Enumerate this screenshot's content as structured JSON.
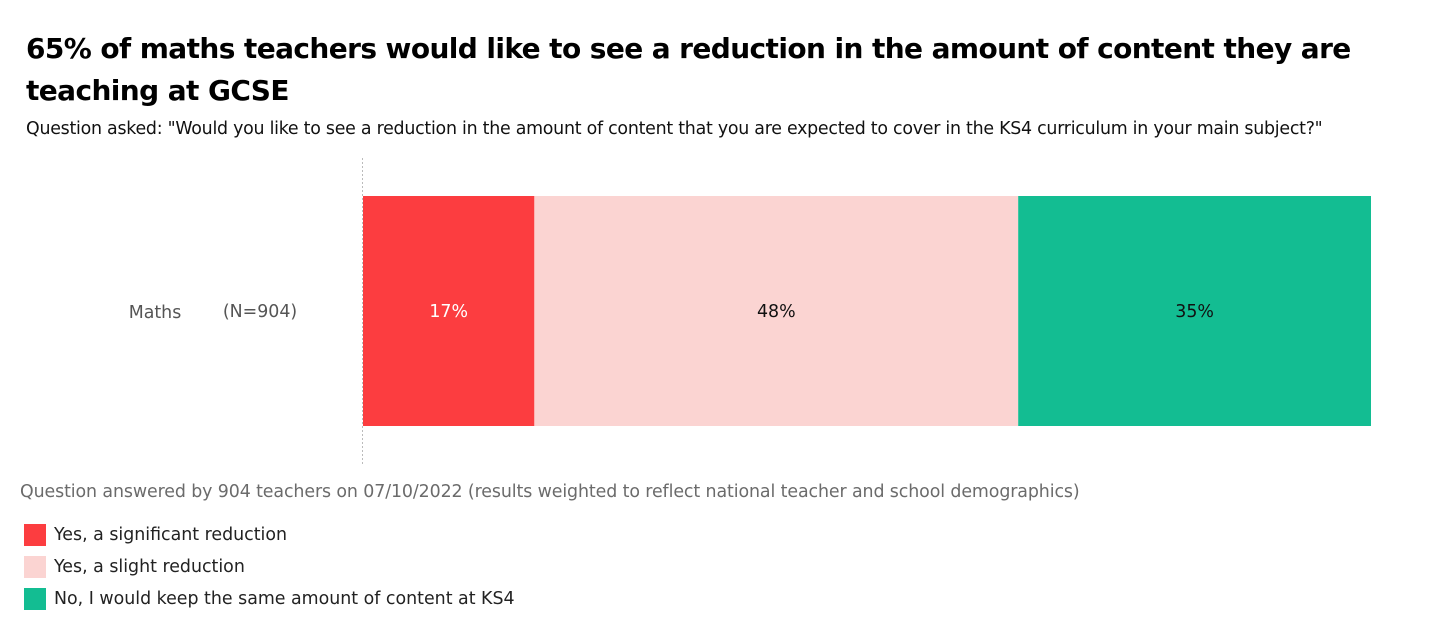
{
  "title": "65% of maths teachers would like to see a reduction in the amount of content they are teaching at GCSE",
  "subtitle": "Question asked: \"Would you like to see a reduction in the amount of content that you are expected to cover in the KS4 curriculum in your main subject?\"",
  "footnote": "Question answered by 904 teachers on 07/10/2022 (results weighted to reflect national teacher and school demographics)",
  "colors": {
    "significant": "#fc3d40",
    "slight": "#fbd4d2",
    "keep": "#13bd92",
    "axis": "#bbbbbb",
    "category_text": "#555555",
    "label_light": "#ffffff",
    "label_dark": "#111111"
  },
  "legend": [
    {
      "label": "Yes, a significant reduction",
      "color": "#fc3d40"
    },
    {
      "label": "Yes, a slight reduction",
      "color": "#fbd4d2"
    },
    {
      "label": "No, I would keep the same amount of content at KS4",
      "color": "#13bd92"
    }
  ],
  "chart_data": {
    "type": "bar",
    "orientation": "horizontal",
    "stacked": true,
    "normalized": true,
    "categories": [
      "Maths"
    ],
    "category_notes": [
      "(N=904)"
    ],
    "series": [
      {
        "name": "Yes, a significant reduction",
        "values": [
          17
        ],
        "labels": [
          "17%"
        ],
        "color": "#fc3d40"
      },
      {
        "name": "Yes, a slight reduction",
        "values": [
          48
        ],
        "labels": [
          "48%"
        ],
        "color": "#fbd4d2"
      },
      {
        "name": "No, I would keep the same amount of content at KS4",
        "values": [
          35
        ],
        "labels": [
          "35%"
        ],
        "color": "#13bd92"
      }
    ],
    "xlim": [
      0,
      100
    ],
    "grid": false,
    "legend_position": "bottom-left"
  }
}
